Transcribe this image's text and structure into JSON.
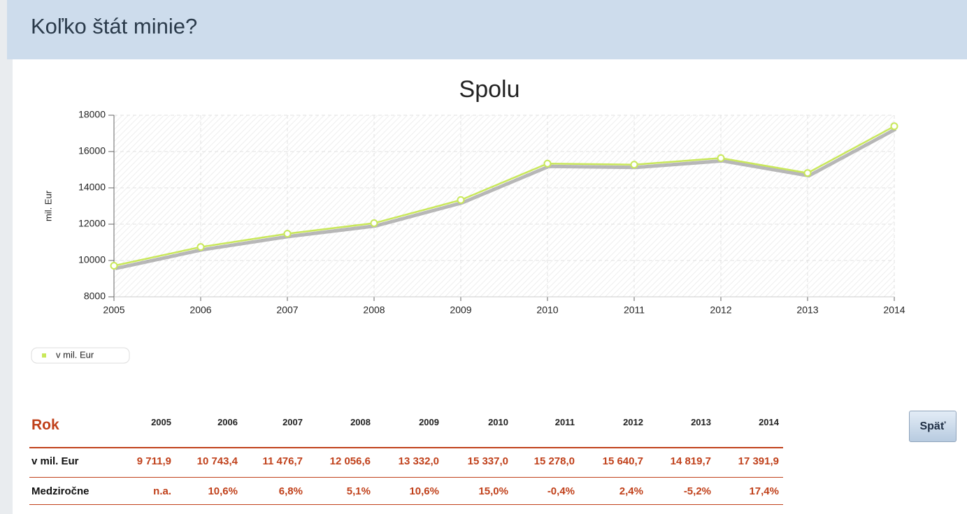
{
  "header": {
    "title": "Koľko štát minie?"
  },
  "chart_data": {
    "type": "line",
    "title": "Spolu",
    "ylabel": "mil. Eur",
    "x": [
      2005,
      2006,
      2007,
      2008,
      2009,
      2010,
      2011,
      2012,
      2013,
      2014
    ],
    "xlim": [
      2005,
      2014
    ],
    "xticks": [
      2005,
      2006,
      2007,
      2008,
      2009,
      2010,
      2011,
      2012,
      2013,
      2014
    ],
    "series": [
      {
        "name": "v mil. Eur",
        "color": "#c9e85a",
        "values": [
          9711.9,
          10743.4,
          11476.7,
          12056.6,
          13332.0,
          15337.0,
          15278.0,
          15640.7,
          14819.7,
          17391.9
        ]
      }
    ],
    "ylim": [
      8000,
      18000
    ],
    "yticks": [
      8000,
      10000,
      12000,
      14000,
      16000,
      18000
    ],
    "grid": true,
    "legend": "bottom-left"
  },
  "table": {
    "header": [
      "Rok",
      "2005",
      "2006",
      "2007",
      "2008",
      "2009",
      "2010",
      "2011",
      "2012",
      "2013",
      "2014"
    ],
    "rows": [
      [
        "v mil. Eur",
        "9 711,9",
        "10 743,4",
        "11 476,7",
        "12 056,6",
        "13 332,0",
        "15 337,0",
        "15 278,0",
        "15 640,7",
        "14 819,7",
        "17 391,9"
      ],
      [
        "Medziročne",
        "n.a.",
        "10,6%",
        "6,8%",
        "5,1%",
        "10,6%",
        "15,0%",
        "-0,4%",
        "2,4%",
        "-5,2%",
        "17,4%"
      ]
    ]
  },
  "button": {
    "label": "Späť"
  }
}
